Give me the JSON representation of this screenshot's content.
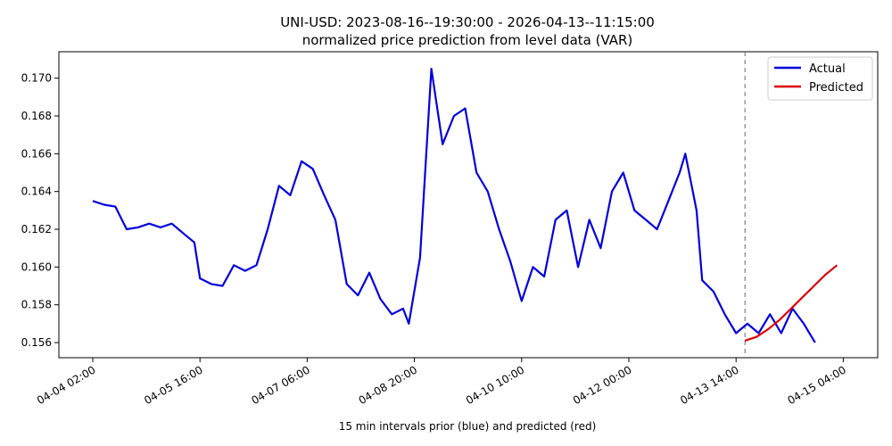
{
  "chart_data": {
    "type": "line",
    "title": "UNI-USD: 2023-08-16--19:30:00 - 2026-04-13--11:15:00",
    "subtitle": "normalized price prediction from level data (VAR)",
    "xlabel": "15 min intervals prior (blue) and predicted (red)",
    "ylabel": "",
    "ylim": [
      0.1552,
      0.1714
    ],
    "x_tick_labels": [
      "04-04 02:00",
      "04-05 16:00",
      "04-07 06:00",
      "04-08 20:00",
      "04-10 10:00",
      "04-12 00:00",
      "04-13 14:00",
      "04-15 04:00"
    ],
    "y_ticks": [
      0.156,
      0.158,
      0.16,
      0.162,
      0.164,
      0.166,
      0.168,
      0.17
    ],
    "grid": false,
    "legend_position": "top-right",
    "divider_label": "04-13 14:00",
    "series": [
      {
        "name": "Actual",
        "color": "#0000dd",
        "points": [
          [
            "04-04 02:00",
            0.1635
          ],
          [
            "04-04 06:00",
            0.1633
          ],
          [
            "04-04 10:00",
            0.1632
          ],
          [
            "04-04 14:00",
            0.162
          ],
          [
            "04-04 18:00",
            0.1621
          ],
          [
            "04-04 22:00",
            0.1623
          ],
          [
            "04-05 02:00",
            0.1621
          ],
          [
            "04-05 06:00",
            0.1623
          ],
          [
            "04-05 10:00",
            0.1618
          ],
          [
            "04-05 14:00",
            0.1613
          ],
          [
            "04-05 16:00",
            0.1594
          ],
          [
            "04-05 20:00",
            0.1591
          ],
          [
            "04-06 00:00",
            0.159
          ],
          [
            "04-06 04:00",
            0.1601
          ],
          [
            "04-06 08:00",
            0.1598
          ],
          [
            "04-06 12:00",
            0.1601
          ],
          [
            "04-06 16:00",
            0.162
          ],
          [
            "04-06 20:00",
            0.1643
          ],
          [
            "04-07 00:00",
            0.1638
          ],
          [
            "04-07 04:00",
            0.1656
          ],
          [
            "04-07 08:00",
            0.1652
          ],
          [
            "04-07 12:00",
            0.1638
          ],
          [
            "04-07 16:00",
            0.1625
          ],
          [
            "04-07 20:00",
            0.1591
          ],
          [
            "04-08 00:00",
            0.1585
          ],
          [
            "04-08 04:00",
            0.1597
          ],
          [
            "04-08 08:00",
            0.1583
          ],
          [
            "04-08 12:00",
            0.1575
          ],
          [
            "04-08 16:00",
            0.1578
          ],
          [
            "04-08 18:00",
            0.157
          ],
          [
            "04-08 22:00",
            0.1605
          ],
          [
            "04-09 02:00",
            0.1705
          ],
          [
            "04-09 06:00",
            0.1665
          ],
          [
            "04-09 10:00",
            0.168
          ],
          [
            "04-09 14:00",
            0.1684
          ],
          [
            "04-09 18:00",
            0.165
          ],
          [
            "04-09 22:00",
            0.164
          ],
          [
            "04-10 02:00",
            0.162
          ],
          [
            "04-10 06:00",
            0.1603
          ],
          [
            "04-10 10:00",
            0.1582
          ],
          [
            "04-10 14:00",
            0.16
          ],
          [
            "04-10 18:00",
            0.1595
          ],
          [
            "04-10 22:00",
            0.1625
          ],
          [
            "04-11 02:00",
            0.163
          ],
          [
            "04-11 06:00",
            0.16
          ],
          [
            "04-11 10:00",
            0.1625
          ],
          [
            "04-11 14:00",
            0.161
          ],
          [
            "04-11 18:00",
            0.164
          ],
          [
            "04-11 22:00",
            0.165
          ],
          [
            "04-12 02:00",
            0.163
          ],
          [
            "04-12 06:00",
            0.1625
          ],
          [
            "04-12 10:00",
            0.162
          ],
          [
            "04-12 14:00",
            0.1635
          ],
          [
            "04-12 18:00",
            0.165
          ],
          [
            "04-12 20:00",
            0.166
          ],
          [
            "04-13 00:00",
            0.163
          ],
          [
            "04-13 02:00",
            0.1593
          ],
          [
            "04-13 06:00",
            0.1587
          ],
          [
            "04-13 10:00",
            0.1575
          ],
          [
            "04-13 14:00",
            0.1565
          ],
          [
            "04-13 18:00",
            0.157
          ],
          [
            "04-13 22:00",
            0.1565
          ],
          [
            "04-14 02:00",
            0.1575
          ],
          [
            "04-14 06:00",
            0.1565
          ],
          [
            "04-14 10:00",
            0.1578
          ],
          [
            "04-14 14:00",
            0.157
          ],
          [
            "04-14 18:00",
            0.156
          ]
        ]
      },
      {
        "name": "Predicted",
        "color": "#dd0000",
        "points": [
          [
            "04-13 14:00",
            0.1561
          ],
          [
            "04-13 18:00",
            0.1563
          ],
          [
            "04-13 22:00",
            0.1567
          ],
          [
            "04-14 02:00",
            0.1572
          ],
          [
            "04-14 06:00",
            0.1578
          ],
          [
            "04-14 10:00",
            0.1584
          ],
          [
            "04-14 14:00",
            0.159
          ],
          [
            "04-14 18:00",
            0.1596
          ],
          [
            "04-14 22:00",
            0.1601
          ]
        ]
      }
    ]
  }
}
